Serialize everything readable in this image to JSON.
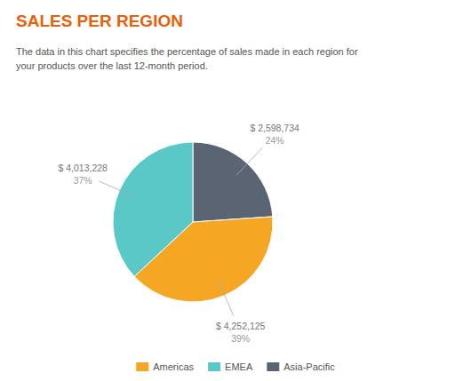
{
  "chart_data": {
    "type": "pie",
    "title": "SALES PER REGION",
    "subtitle": "The data in this chart specifies the percentage of sales made in each region for\nyour products over the last 12-month period.",
    "categories": [
      "Asia-Pacific",
      "Americas",
      "EMEA"
    ],
    "values": [
      2598734,
      4252125,
      4013228
    ],
    "value_labels": [
      "$ 2,598,734",
      "$ 4,252,125",
      "$ 4,013,228"
    ],
    "shares": [
      24,
      39,
      37
    ],
    "share_labels": [
      "24%",
      "39%",
      "37%"
    ],
    "colors": [
      "#5a6472",
      "#f5a623",
      "#5bc8c8"
    ],
    "legend_labels": [
      "Americas",
      "EMEA",
      "Asia-Pacific"
    ],
    "legend_colors": [
      "#f5a623",
      "#5bc8c8",
      "#5a6472"
    ],
    "legend": "bottom",
    "data_labels": true
  }
}
